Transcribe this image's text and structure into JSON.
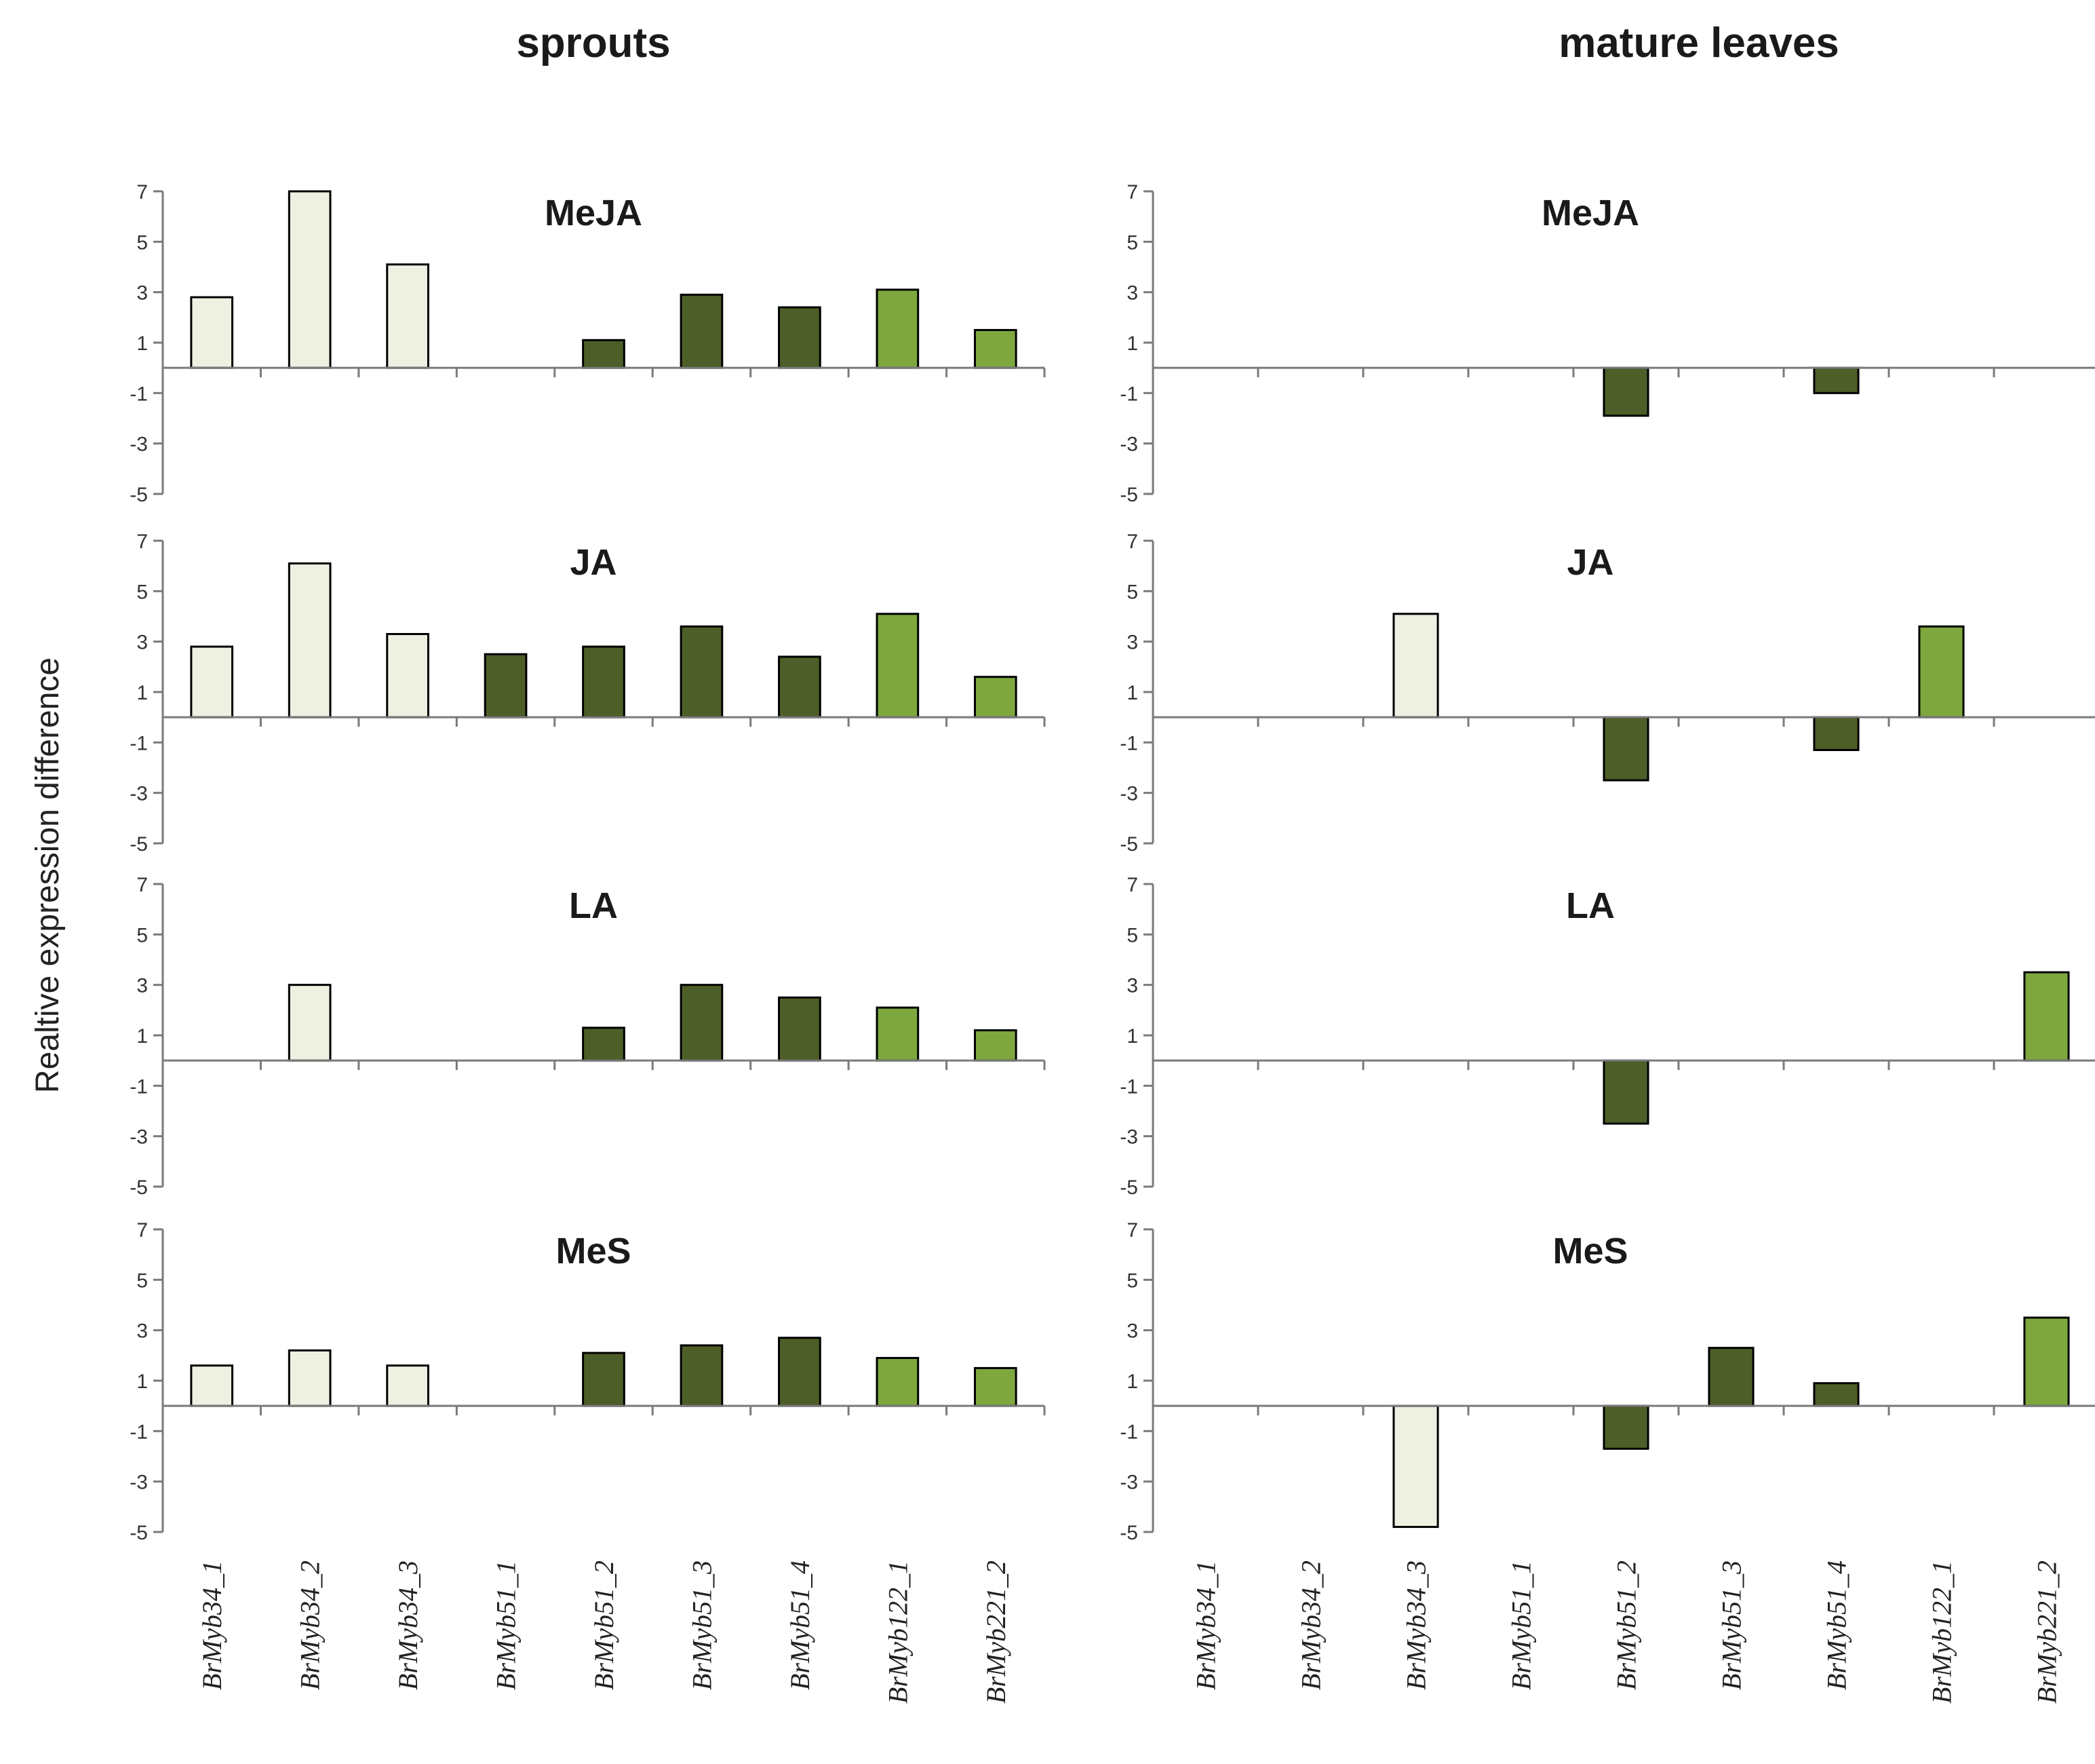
{
  "ylabel": "Realtive expression  difference",
  "colors": {
    "Myb34": "#eef0e2",
    "Myb51": "#4d5e28",
    "Myb122": "#7ea83e",
    "bar_stroke": "#000000"
  },
  "chart_data": {
    "type": "bar",
    "categories": [
      "BrMyb34_1",
      "BrMyb34_2",
      "BrMyb34_3",
      "BrMyb51_1",
      "BrMyb51_2",
      "BrMyb51_3",
      "BrMyb51_4",
      "BrMyb122_1",
      "BrMyb221_2"
    ],
    "category_groups": [
      "Myb34",
      "Myb34",
      "Myb34",
      "Myb51",
      "Myb51",
      "Myb51",
      "Myb51",
      "Myb122",
      "Myb122"
    ],
    "ylim": [
      -5,
      7
    ],
    "yticks": [
      7,
      5,
      3,
      1,
      -1,
      -3,
      -5
    ],
    "columns": [
      {
        "title": "sprouts",
        "panels": [
          {
            "title": "MeJA",
            "values": [
              2.8,
              7.0,
              4.1,
              0,
              1.1,
              2.9,
              2.4,
              3.1,
              1.5
            ]
          },
          {
            "title": "JA",
            "values": [
              2.8,
              6.1,
              3.3,
              2.5,
              2.8,
              3.6,
              2.4,
              4.1,
              1.6
            ]
          },
          {
            "title": "LA",
            "values": [
              0,
              3.0,
              0,
              0,
              1.3,
              3.0,
              2.5,
              2.1,
              1.2
            ]
          },
          {
            "title": "MeS",
            "values": [
              1.6,
              2.2,
              1.6,
              0,
              2.1,
              2.4,
              2.7,
              1.9,
              1.5
            ]
          }
        ]
      },
      {
        "title": "mature leaves",
        "panels": [
          {
            "title": "MeJA",
            "values": [
              0,
              0,
              0,
              0,
              -1.9,
              0,
              -1.0,
              0,
              0
            ]
          },
          {
            "title": "JA",
            "values": [
              0,
              0,
              4.1,
              0,
              -2.5,
              0,
              -1.3,
              3.6,
              0
            ]
          },
          {
            "title": "LA",
            "values": [
              0,
              0,
              0,
              0,
              -2.5,
              0,
              0,
              0,
              3.5
            ]
          },
          {
            "title": "MeS",
            "values": [
              0,
              0,
              -4.8,
              0,
              -1.7,
              2.3,
              0.9,
              0,
              3.5
            ]
          }
        ]
      }
    ]
  }
}
